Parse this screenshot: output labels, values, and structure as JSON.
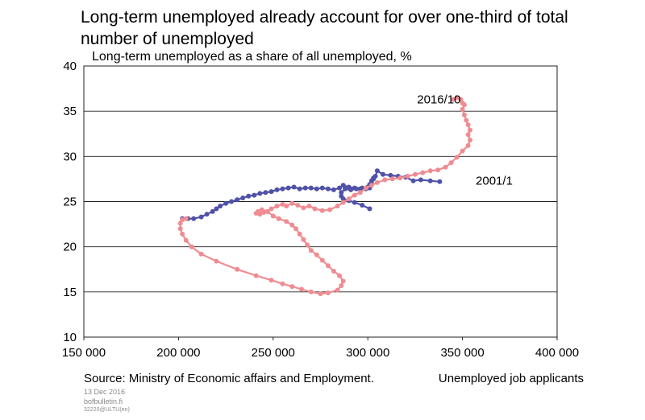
{
  "title": "Long-term unemployed already account for over one-third of total number of unemployed",
  "subtitle": "Long-term unemployed as a share of all unemployed, %",
  "source": "Source: Ministry of Economic affairs and Employment.",
  "footer": {
    "date": "13 Dec 2016",
    "site": "bofbulletin.fi",
    "code": "32220@ULTU(en)"
  },
  "chart_data": {
    "type": "line",
    "title": "Long-term unemployed as a share of all unemployed, %",
    "xlabel": "Unemployed job applicants",
    "ylabel": "",
    "xlim": [
      150000,
      400000
    ],
    "ylim": [
      10,
      40
    ],
    "x_ticks": [
      "150 000",
      "200 000",
      "250 000",
      "300 000",
      "350 000",
      "400 000"
    ],
    "y_ticks": [
      "10",
      "15",
      "20",
      "25",
      "30",
      "35",
      "40"
    ],
    "grid": "horizontal",
    "colors": {
      "series_2001": "#4f52a8",
      "series_2016": "#ef8c92",
      "grid": "#222222"
    },
    "annotations": [
      {
        "text": "2016/10",
        "x": 326000,
        "y": 36.3
      },
      {
        "text": "2001/1",
        "x": 357000,
        "y": 27.3
      }
    ],
    "series": [
      {
        "name": "",
        "color": "#4f52a8",
        "points": [
          [
            338000,
            27.2
          ],
          [
            333000,
            27.3
          ],
          [
            328000,
            27.4
          ],
          [
            324000,
            27.3
          ],
          [
            320000,
            27.7
          ],
          [
            316000,
            27.8
          ],
          [
            312000,
            27.9
          ],
          [
            308000,
            28.0
          ],
          [
            305000,
            28.4
          ],
          [
            304000,
            27.8
          ],
          [
            303000,
            27.5
          ],
          [
            302000,
            27.3
          ],
          [
            301000,
            26.9
          ],
          [
            301000,
            26.5
          ],
          [
            299000,
            26.4
          ],
          [
            296000,
            26.4
          ],
          [
            293000,
            26.5
          ],
          [
            290000,
            26.6
          ],
          [
            287000,
            26.8
          ],
          [
            285000,
            26.5
          ],
          [
            282000,
            26.3
          ],
          [
            279000,
            26.4
          ],
          [
            276000,
            26.5
          ],
          [
            273000,
            26.4
          ],
          [
            270000,
            26.5
          ],
          [
            267000,
            26.5
          ],
          [
            264000,
            26.4
          ],
          [
            261000,
            26.6
          ],
          [
            258000,
            26.5
          ],
          [
            255000,
            26.4
          ],
          [
            252000,
            26.3
          ],
          [
            249000,
            26.1
          ],
          [
            246000,
            26.0
          ],
          [
            243000,
            25.9
          ],
          [
            240000,
            25.7
          ],
          [
            237000,
            25.6
          ],
          [
            234000,
            25.4
          ],
          [
            231000,
            25.2
          ],
          [
            228000,
            25.0
          ],
          [
            225000,
            24.8
          ],
          [
            222000,
            24.5
          ],
          [
            220000,
            24.2
          ],
          [
            218000,
            23.9
          ],
          [
            215000,
            23.6
          ],
          [
            212000,
            23.3
          ],
          [
            208000,
            23.1
          ],
          [
            205000,
            23.1
          ],
          [
            202000,
            23.1
          ]
        ]
      },
      {
        "name": "",
        "color": "#4f52a8",
        "points": [
          [
            301000,
            24.2
          ],
          [
            297000,
            24.6
          ],
          [
            293000,
            24.9
          ],
          [
            290000,
            25.1
          ],
          [
            287000,
            25.3
          ],
          [
            286000,
            25.6
          ],
          [
            286000,
            26.0
          ],
          [
            288000,
            26.4
          ],
          [
            291000,
            26.3
          ],
          [
            294000,
            26.4
          ],
          [
            297000,
            26.5
          ],
          [
            300000,
            26.6
          ],
          [
            302000,
            27.0
          ],
          [
            303000,
            27.6
          ]
        ]
      },
      {
        "name": "",
        "color": "#ef8c92",
        "points": [
          [
            345000,
            36.3
          ],
          [
            347000,
            36.5
          ],
          [
            349000,
            36.3
          ],
          [
            350000,
            35.9
          ],
          [
            351000,
            35.7
          ],
          [
            350000,
            35.2
          ],
          [
            351000,
            34.6
          ],
          [
            352000,
            34.0
          ],
          [
            353000,
            33.5
          ],
          [
            354000,
            32.9
          ],
          [
            353000,
            32.4
          ],
          [
            354000,
            31.8
          ],
          [
            353000,
            31.2
          ],
          [
            350000,
            30.6
          ],
          [
            347000,
            29.9
          ],
          [
            344000,
            29.3
          ],
          [
            341000,
            28.8
          ],
          [
            337000,
            28.5
          ],
          [
            333000,
            28.4
          ],
          [
            329000,
            28.2
          ],
          [
            325000,
            28.0
          ],
          [
            321000,
            27.8
          ],
          [
            317000,
            27.6
          ],
          [
            313000,
            27.5
          ],
          [
            309000,
            27.4
          ],
          [
            305000,
            27.1
          ],
          [
            302000,
            26.8
          ],
          [
            299000,
            26.5
          ],
          [
            296000,
            26.0
          ],
          [
            293000,
            25.7
          ],
          [
            290000,
            25.3
          ],
          [
            287000,
            24.9
          ],
          [
            284000,
            24.5
          ],
          [
            280000,
            24.1
          ],
          [
            276000,
            24.0
          ],
          [
            272000,
            24.2
          ],
          [
            269000,
            24.5
          ],
          [
            266000,
            24.3
          ],
          [
            263000,
            24.6
          ],
          [
            260000,
            24.8
          ],
          [
            257000,
            24.5
          ],
          [
            255000,
            24.7
          ],
          [
            252000,
            24.5
          ],
          [
            249000,
            24.2
          ],
          [
            247000,
            23.9
          ],
          [
            245000,
            23.8
          ],
          [
            243000,
            23.6
          ],
          [
            241000,
            23.7
          ],
          [
            242000,
            23.9
          ],
          [
            244000,
            24.1
          ],
          [
            247000,
            23.9
          ],
          [
            250000,
            23.4
          ],
          [
            253000,
            23.1
          ],
          [
            257000,
            22.8
          ],
          [
            260000,
            22.4
          ],
          [
            262000,
            22.0
          ],
          [
            264000,
            21.4
          ],
          [
            266000,
            20.8
          ],
          [
            268000,
            20.2
          ],
          [
            270000,
            19.6
          ],
          [
            273000,
            19.1
          ],
          [
            276000,
            18.5
          ],
          [
            279000,
            17.9
          ],
          [
            282000,
            17.3
          ],
          [
            285000,
            16.8
          ],
          [
            287000,
            16.2
          ],
          [
            286000,
            15.7
          ],
          [
            284000,
            15.2
          ],
          [
            279000,
            14.9
          ],
          [
            275000,
            14.8
          ],
          [
            270000,
            15.0
          ],
          [
            265000,
            15.3
          ],
          [
            260000,
            15.6
          ],
          [
            255000,
            15.9
          ],
          [
            249000,
            16.3
          ],
          [
            241000,
            16.8
          ],
          [
            231000,
            17.5
          ],
          [
            220000,
            18.4
          ],
          [
            212000,
            19.2
          ],
          [
            207000,
            20.0
          ],
          [
            204000,
            20.7
          ],
          [
            202000,
            21.4
          ],
          [
            201000,
            22.0
          ],
          [
            201000,
            22.6
          ],
          [
            202000,
            23.0
          ],
          [
            204000,
            23.1
          ]
        ]
      }
    ]
  }
}
